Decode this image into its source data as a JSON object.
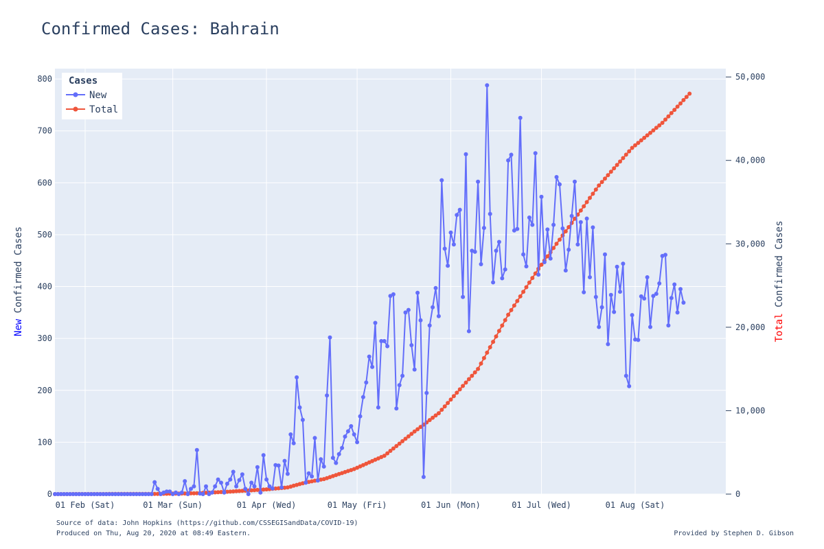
{
  "chart_data": {
    "type": "line",
    "title": "Confirmed Cases: Bahrain",
    "xlabel": "",
    "x_axis": {
      "range": [
        "2020-01-22",
        "2020-08-31"
      ],
      "ticks": [
        {
          "date": "2020-02-01",
          "label": "01 Feb (Sat)"
        },
        {
          "date": "2020-03-01",
          "label": "01 Mar (Sun)"
        },
        {
          "date": "2020-04-01",
          "label": "01 Apr (Wed)"
        },
        {
          "date": "2020-05-01",
          "label": "01 May (Fri)"
        },
        {
          "date": "2020-06-01",
          "label": "01 Jun (Mon)"
        },
        {
          "date": "2020-07-01",
          "label": "01 Jul (Wed)"
        },
        {
          "date": "2020-08-01",
          "label": "01 Aug (Sat)"
        }
      ]
    },
    "y_left": {
      "label_highlight": "New",
      "label_rest": " Confirmed Cases",
      "highlight_color": "#0000ff",
      "range": [
        0,
        820
      ],
      "ticks": [
        0,
        100,
        200,
        300,
        400,
        500,
        600,
        700,
        800
      ],
      "tick_labels": [
        "0",
        "100",
        "200",
        "300",
        "400",
        "500",
        "600",
        "700",
        "800"
      ]
    },
    "y_right": {
      "label_highlight": "Total",
      "label_rest": " Confirmed Cases",
      "highlight_color": "#ff0000",
      "range": [
        0,
        51000
      ],
      "ticks": [
        0,
        10000,
        20000,
        30000,
        40000,
        50000
      ],
      "tick_labels": [
        "0",
        "10,000",
        "20,000",
        "30,000",
        "40,000",
        "50,000"
      ]
    },
    "grid": true,
    "legend": {
      "title": "Cases",
      "placement": "top-left",
      "entries": [
        "New",
        "Total"
      ]
    },
    "series": [
      {
        "name": "New",
        "axis": "left",
        "color": "#636efa",
        "start_date": "2020-02-24",
        "values": [
          23,
          10,
          0,
          3,
          5,
          5,
          0,
          3,
          0,
          3,
          25,
          0,
          10,
          15,
          85,
          1,
          0,
          15,
          0,
          3,
          15,
          28,
          22,
          3,
          20,
          28,
          43,
          15,
          27,
          38,
          10,
          0,
          22,
          15,
          52,
          3,
          75,
          28,
          15,
          11,
          56,
          55,
          13,
          64,
          39,
          115,
          98,
          225,
          167,
          143,
          22,
          40,
          34,
          108,
          26,
          67,
          53,
          190,
          302,
          70,
          60,
          77,
          89,
          111,
          121,
          131,
          115,
          100,
          150,
          187,
          215,
          265,
          245,
          330,
          167,
          295,
          295,
          285,
          382,
          385,
          165,
          210,
          228,
          350,
          355,
          287,
          240,
          388,
          335,
          33,
          195,
          325,
          360,
          397,
          343,
          605,
          473,
          440,
          504,
          481,
          538,
          548,
          380,
          655,
          314,
          469,
          467,
          602,
          443,
          513,
          788,
          540,
          408,
          469,
          486,
          416,
          433,
          643,
          654,
          508,
          511,
          725,
          462,
          439,
          533,
          519,
          657,
          423,
          573,
          447,
          510,
          454,
          519,
          611,
          597,
          512,
          431,
          471,
          536,
          602,
          481,
          524,
          389,
          531,
          418,
          514,
          380,
          322,
          360,
          462,
          289,
          384,
          351,
          438,
          390,
          444,
          228,
          208,
          345,
          298,
          297,
          381,
          377,
          418,
          322,
          382,
          386,
          406,
          459,
          461,
          325,
          378,
          404,
          350,
          395,
          369
        ]
      },
      {
        "name": "Total",
        "axis": "right",
        "color": "#ef553b",
        "checkpoints": [
          [
            "2020-01-22",
            0
          ],
          [
            "2020-02-24",
            23
          ],
          [
            "2020-03-09",
            100
          ],
          [
            "2020-03-20",
            300
          ],
          [
            "2020-04-01",
            567
          ],
          [
            "2020-04-08",
            800
          ],
          [
            "2020-04-14",
            1400
          ],
          [
            "2020-04-20",
            1800
          ],
          [
            "2020-04-30",
            3000
          ],
          [
            "2020-05-10",
            4600
          ],
          [
            "2020-05-20",
            7500
          ],
          [
            "2020-05-28",
            9700
          ],
          [
            "2020-06-10",
            15000
          ],
          [
            "2020-06-20",
            21500
          ],
          [
            "2020-06-30",
            27000
          ],
          [
            "2020-07-10",
            32000
          ],
          [
            "2020-07-20",
            37000
          ],
          [
            "2020-07-31",
            41500
          ],
          [
            "2020-08-10",
            44500
          ],
          [
            "2020-08-19",
            48000
          ]
        ]
      }
    ]
  },
  "footer": {
    "source": "Source of data: John Hopkins (https://github.com/CSSEGISandData/COVID-19)",
    "produced": "Produced on Thu, Aug 20, 2020 at 08:49 Eastern.",
    "credit": "Provided by Stephen D. Gibson"
  }
}
